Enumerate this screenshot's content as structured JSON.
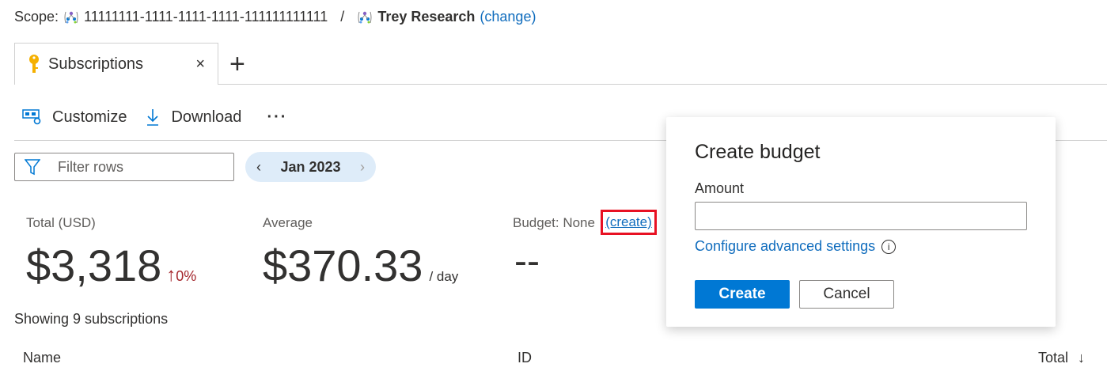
{
  "scope": {
    "label": "Scope:",
    "id": "11111111-1111-1111-1111-111111111111",
    "separator": "/",
    "name": "Trey Research",
    "change_link": "(change)"
  },
  "tabs": [
    {
      "label": "Subscriptions",
      "icon": "key-icon"
    }
  ],
  "toolbar": {
    "customize": "Customize",
    "download": "Download",
    "more": "···"
  },
  "filter": {
    "placeholder": "Filter rows"
  },
  "date": {
    "value": "Jan 2023"
  },
  "kpis": {
    "total_label": "Total (USD)",
    "total_value": "$3,318",
    "change": "0%",
    "average_label": "Average",
    "average_value": "$370.33",
    "average_unit": "/ day",
    "budget_label": "Budget: None",
    "budget_create": "(create)",
    "budget_value": "--"
  },
  "list": {
    "count_text": "Showing 9 subscriptions",
    "columns": [
      "Name",
      "ID",
      "Total"
    ]
  },
  "popup": {
    "title": "Create budget",
    "amount_label": "Amount",
    "amount_value": "",
    "advanced_link": "Configure advanced settings",
    "create": "Create",
    "cancel": "Cancel"
  },
  "colors": {
    "accent": "#0078d4",
    "link": "#0f6cbd",
    "up": "#a4262c",
    "highlight": "#e81123"
  }
}
